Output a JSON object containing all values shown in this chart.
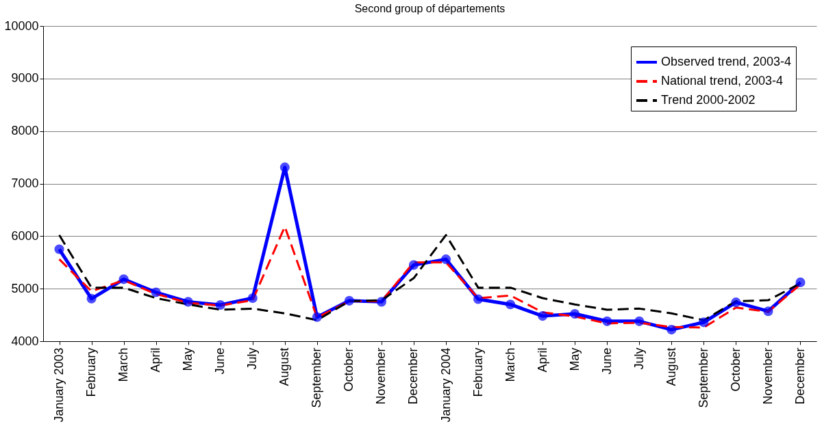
{
  "chart_data": {
    "type": "line",
    "title": "Second group of départements",
    "categories": [
      "January 2003",
      "February",
      "March",
      "April",
      "May",
      "June",
      "July",
      "August",
      "September",
      "October",
      "November",
      "December",
      "January 2004",
      "February",
      "March",
      "April",
      "May",
      "June",
      "July",
      "August",
      "September",
      "October",
      "November",
      "December"
    ],
    "series": [
      {
        "name": "Observed trend, 2003-4",
        "color": "#0000ff",
        "marker": "circle",
        "line_style": "solid",
        "values": [
          5750,
          4810,
          5180,
          4930,
          4750,
          4690,
          4820,
          7310,
          4460,
          4770,
          4750,
          5450,
          5560,
          4800,
          4700,
          4480,
          4520,
          4380,
          4380,
          4220,
          4360,
          4740,
          4570,
          5120
        ]
      },
      {
        "name": "National trend, 2003-4",
        "color": "#ff0000",
        "marker": "none",
        "line_style": "dashed",
        "values": [
          5560,
          4950,
          5160,
          4900,
          4730,
          4680,
          4780,
          6180,
          4450,
          4760,
          4760,
          5500,
          5500,
          4820,
          4870,
          4550,
          4470,
          4340,
          4350,
          4270,
          4260,
          4640,
          4560,
          5080
        ]
      },
      {
        "name": "Trend 2000-2002",
        "color": "#000000",
        "marker": "none",
        "line_style": "dashed",
        "values": [
          6020,
          5020,
          5020,
          4820,
          4700,
          4600,
          4620,
          4530,
          4400,
          4760,
          4780,
          5200,
          6020,
          5020,
          5020,
          4820,
          4700,
          4600,
          4620,
          4530,
          4400,
          4760,
          4780,
          5100
        ]
      }
    ],
    "ylim": [
      4000,
      10000
    ],
    "yticks": [
      4000,
      5000,
      6000,
      7000,
      8000,
      9000,
      10000
    ],
    "grid": "y",
    "legend": "top right"
  }
}
